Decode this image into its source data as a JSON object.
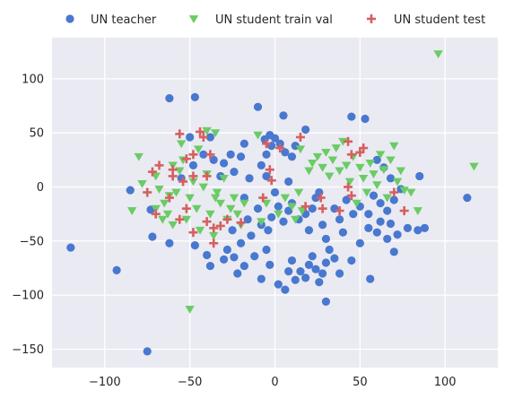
{
  "chart_data": {
    "type": "scatter",
    "title": "",
    "xlabel": "",
    "ylabel": "",
    "xlim": [
      -131,
      131
    ],
    "ylim": [
      -167,
      138
    ],
    "xticks": [
      -100,
      -50,
      0,
      50,
      100
    ],
    "yticks": [
      -150,
      -100,
      -50,
      0,
      50,
      100
    ],
    "grid": true,
    "legend_position": "top",
    "series": [
      {
        "name": "UN teacher",
        "marker": "circle",
        "color": "#4878cf",
        "points": [
          [
            -120,
            -56
          ],
          [
            -93,
            -77
          ],
          [
            -75,
            -152
          ],
          [
            -62,
            82
          ],
          [
            -47,
            83
          ],
          [
            -85,
            -3
          ],
          [
            -72,
            -46
          ],
          [
            -73,
            -21
          ],
          [
            -62,
            -52
          ],
          [
            -47,
            -54
          ],
          [
            -40,
            -63
          ],
          [
            -38,
            -73
          ],
          [
            -50,
            46
          ],
          [
            -38,
            46
          ],
          [
            -36,
            25
          ],
          [
            -30,
            -67
          ],
          [
            -28,
            -58
          ],
          [
            -24,
            -65
          ],
          [
            -22,
            -80
          ],
          [
            -18,
            -73
          ],
          [
            -12,
            -64
          ],
          [
            -8,
            -85
          ],
          [
            -5,
            -58
          ],
          [
            -3,
            -72
          ],
          [
            2,
            -90
          ],
          [
            6,
            -95
          ],
          [
            8,
            -78
          ],
          [
            10,
            -68
          ],
          [
            12,
            -86
          ],
          [
            15,
            -78
          ],
          [
            18,
            -84
          ],
          [
            20,
            -72
          ],
          [
            22,
            -64
          ],
          [
            24,
            -76
          ],
          [
            26,
            -88
          ],
          [
            28,
            -80
          ],
          [
            30,
            -70
          ],
          [
            32,
            -58
          ],
          [
            35,
            -66
          ],
          [
            38,
            -80
          ],
          [
            30,
            -106
          ],
          [
            40,
            -42
          ],
          [
            45,
            -68
          ],
          [
            50,
            -52
          ],
          [
            56,
            -85
          ],
          [
            55,
            -38
          ],
          [
            60,
            -42
          ],
          [
            62,
            -32
          ],
          [
            66,
            -48
          ],
          [
            68,
            -34
          ],
          [
            70,
            -60
          ],
          [
            72,
            -44
          ],
          [
            78,
            -38
          ],
          [
            84,
            -40
          ],
          [
            88,
            -38
          ],
          [
            85,
            10
          ],
          [
            113,
            -10
          ],
          [
            18,
            53
          ],
          [
            5,
            66
          ],
          [
            45,
            65
          ],
          [
            53,
            63
          ],
          [
            -10,
            74
          ],
          [
            -15,
            8
          ],
          [
            -5,
            10
          ],
          [
            0,
            -5
          ],
          [
            8,
            5
          ],
          [
            10,
            -15
          ],
          [
            14,
            -30
          ],
          [
            18,
            -25
          ],
          [
            20,
            -40
          ],
          [
            22,
            -20
          ],
          [
            24,
            -10
          ],
          [
            26,
            -5
          ],
          [
            28,
            -35
          ],
          [
            30,
            -48
          ],
          [
            -8,
            20
          ],
          [
            -5,
            30
          ],
          [
            -2,
            38
          ],
          [
            0,
            45
          ],
          [
            3,
            40
          ],
          [
            6,
            32
          ],
          [
            10,
            28
          ],
          [
            -6,
            44
          ],
          [
            -3,
            48
          ],
          [
            12,
            38
          ],
          [
            -18,
            40
          ],
          [
            -20,
            28
          ],
          [
            -24,
            14
          ],
          [
            -26,
            30
          ],
          [
            -30,
            22
          ],
          [
            -32,
            10
          ],
          [
            -10,
            -20
          ],
          [
            -8,
            -35
          ],
          [
            -4,
            -40
          ],
          [
            -2,
            -28
          ],
          [
            2,
            -18
          ],
          [
            5,
            -32
          ],
          [
            8,
            -22
          ],
          [
            -14,
            -45
          ],
          [
            -16,
            -30
          ],
          [
            -18,
            -10
          ],
          [
            -20,
            -52
          ],
          [
            -25,
            -40
          ],
          [
            60,
            25
          ],
          [
            64,
            18
          ],
          [
            68,
            8
          ],
          [
            70,
            -12
          ],
          [
            74,
            -2
          ],
          [
            50,
            -18
          ],
          [
            55,
            -25
          ],
          [
            58,
            -8
          ],
          [
            62,
            -15
          ],
          [
            66,
            -22
          ],
          [
            35,
            -20
          ],
          [
            38,
            -30
          ],
          [
            42,
            -12
          ],
          [
            46,
            -25
          ],
          [
            -55,
            8
          ],
          [
            -48,
            20
          ],
          [
            -42,
            30
          ]
        ]
      },
      {
        "name": "UN student train val",
        "marker": "triangle-down",
        "color": "#6acc65",
        "points": [
          [
            96,
            123
          ],
          [
            117,
            19
          ],
          [
            -50,
            -113
          ],
          [
            -80,
            28
          ],
          [
            -78,
            3
          ],
          [
            -84,
            -22
          ],
          [
            -70,
            10
          ],
          [
            -68,
            -2
          ],
          [
            -65,
            -15
          ],
          [
            -63,
            -25
          ],
          [
            -60,
            -35
          ],
          [
            -58,
            -5
          ],
          [
            -56,
            15
          ],
          [
            -54,
            25
          ],
          [
            -52,
            -30
          ],
          [
            -50,
            -10
          ],
          [
            -48,
            5
          ],
          [
            -46,
            -20
          ],
          [
            -44,
            -40
          ],
          [
            -42,
            0
          ],
          [
            -40,
            12
          ],
          [
            -38,
            -25
          ],
          [
            -36,
            -45
          ],
          [
            -34,
            -5
          ],
          [
            -32,
            -15
          ],
          [
            -30,
            8
          ],
          [
            -28,
            -30
          ],
          [
            -26,
            -20
          ],
          [
            -24,
            -10
          ],
          [
            -22,
            -25
          ],
          [
            -20,
            -35
          ],
          [
            -18,
            -15
          ],
          [
            -40,
            52
          ],
          [
            -35,
            50
          ],
          [
            -45,
            35
          ],
          [
            -55,
            40
          ],
          [
            -60,
            20
          ],
          [
            -62,
            -8
          ],
          [
            -66,
            -30
          ],
          [
            -70,
            -20
          ],
          [
            -10,
            48
          ],
          [
            -8,
            -32
          ],
          [
            -5,
            -15
          ],
          [
            2,
            -25
          ],
          [
            6,
            -10
          ],
          [
            10,
            -18
          ],
          [
            12,
            -30
          ],
          [
            14,
            -5
          ],
          [
            16,
            -22
          ],
          [
            15,
            35
          ],
          [
            20,
            15
          ],
          [
            22,
            22
          ],
          [
            25,
            28
          ],
          [
            28,
            18
          ],
          [
            30,
            32
          ],
          [
            32,
            10
          ],
          [
            34,
            25
          ],
          [
            36,
            36
          ],
          [
            38,
            15
          ],
          [
            40,
            42
          ],
          [
            42,
            20
          ],
          [
            44,
            5
          ],
          [
            46,
            28
          ],
          [
            48,
            -15
          ],
          [
            50,
            18
          ],
          [
            52,
            8
          ],
          [
            54,
            -5
          ],
          [
            56,
            22
          ],
          [
            58,
            12
          ],
          [
            60,
            2
          ],
          [
            62,
            30
          ],
          [
            64,
            16
          ],
          [
            66,
            -10
          ],
          [
            68,
            25
          ],
          [
            70,
            38
          ],
          [
            72,
            5
          ],
          [
            74,
            15
          ],
          [
            76,
            -3
          ],
          [
            80,
            -5
          ],
          [
            84,
            -22
          ],
          [
            -35,
            -10
          ]
        ]
      },
      {
        "name": "UN student test",
        "marker": "plus",
        "color": "#d65f5f",
        "points": [
          [
            -56,
            49
          ],
          [
            -44,
            51
          ],
          [
            -42,
            46
          ],
          [
            -48,
            30
          ],
          [
            -38,
            30
          ],
          [
            -52,
            26
          ],
          [
            -60,
            16
          ],
          [
            -68,
            20
          ],
          [
            -72,
            14
          ],
          [
            -60,
            10
          ],
          [
            -48,
            10
          ],
          [
            -40,
            10
          ],
          [
            -54,
            5
          ],
          [
            -75,
            -5
          ],
          [
            -62,
            -10
          ],
          [
            -52,
            -20
          ],
          [
            -56,
            -30
          ],
          [
            -40,
            -32
          ],
          [
            -36,
            -38
          ],
          [
            -48,
            -42
          ],
          [
            -36,
            -52
          ],
          [
            -28,
            -30
          ],
          [
            -70,
            -25
          ],
          [
            -3,
            16
          ],
          [
            -5,
            40
          ],
          [
            3,
            36
          ],
          [
            -7,
            -10
          ],
          [
            -2,
            6
          ],
          [
            18,
            -18
          ],
          [
            15,
            46
          ],
          [
            27,
            -10
          ],
          [
            28,
            -20
          ],
          [
            43,
            42
          ],
          [
            45,
            30
          ],
          [
            50,
            32
          ],
          [
            52,
            36
          ],
          [
            43,
            0
          ],
          [
            45,
            -8
          ],
          [
            70,
            -5
          ],
          [
            76,
            -22
          ],
          [
            38,
            -22
          ],
          [
            -20,
            -33
          ],
          [
            -32,
            -36
          ]
        ]
      }
    ]
  }
}
